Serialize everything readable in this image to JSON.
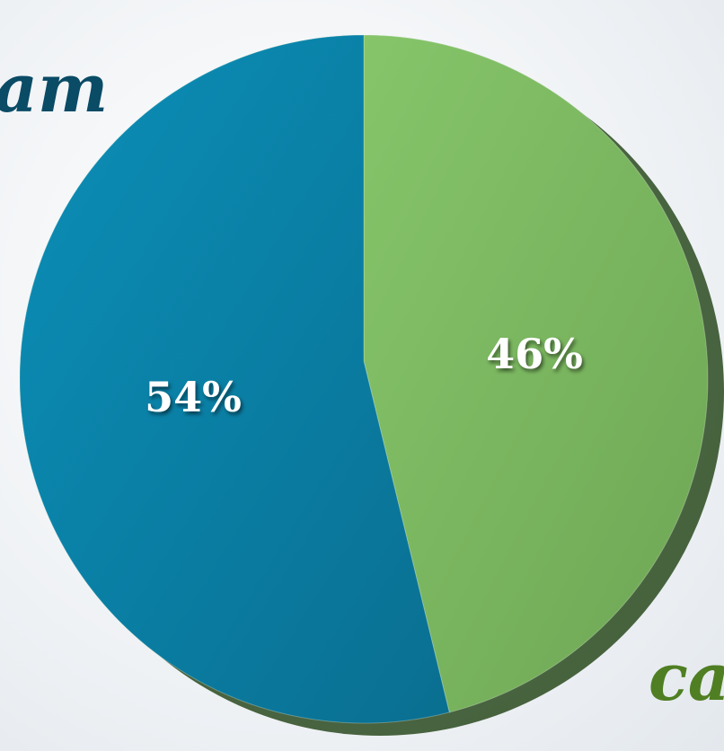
{
  "chart_data": {
    "type": "pie",
    "slices": [
      {
        "label": "54%",
        "value": 54,
        "color": "#0a82a8"
      },
      {
        "label": "46%",
        "value": 46,
        "color": "#7fbf5f"
      }
    ],
    "start_angle_deg": 0,
    "direction": "clockwise",
    "slice_order_from_start": [
      1,
      0
    ],
    "visible_label_fragments": {
      "left": "am",
      "right": "ca"
    }
  },
  "colors": {
    "blue_slice": "#0a82a8",
    "green_slice": "#7fbf5f",
    "fragment_left": "#0a4b66",
    "fragment_right": "#4f7f22"
  }
}
